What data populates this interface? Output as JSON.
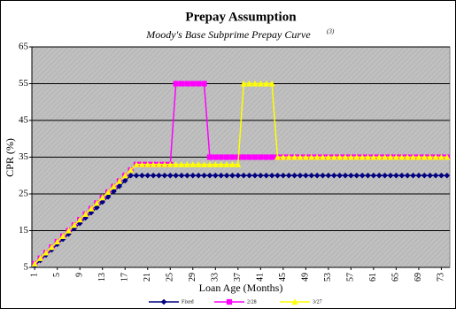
{
  "chart_data": {
    "type": "line",
    "title": "Prepay Assumption",
    "subtitle": "Moody's Base Subprime Prepay Curve",
    "subtitle_note": "(3)",
    "x_label": "Loan Age (Months)",
    "y_label": "CPR (%)",
    "x": [
      1,
      2,
      3,
      4,
      5,
      6,
      7,
      8,
      9,
      10,
      11,
      12,
      13,
      14,
      15,
      16,
      17,
      18,
      19,
      20,
      21,
      22,
      23,
      24,
      25,
      26,
      27,
      28,
      29,
      30,
      31,
      32,
      33,
      34,
      35,
      36,
      37,
      38,
      39,
      40,
      41,
      42,
      43,
      44,
      45,
      46,
      47,
      48,
      49,
      50,
      51,
      52,
      53,
      54,
      55,
      56,
      57,
      58,
      59,
      60,
      61,
      62,
      63,
      64,
      65,
      66,
      67,
      68,
      69,
      70,
      71,
      72,
      73,
      74
    ],
    "xlim": [
      0.5,
      74.5
    ],
    "xticks": [
      1,
      5,
      9,
      13,
      17,
      21,
      25,
      29,
      33,
      37,
      41,
      45,
      49,
      53,
      57,
      61,
      65,
      69,
      73
    ],
    "ylim": [
      5,
      65
    ],
    "yticks": [
      5,
      15,
      25,
      35,
      45,
      55,
      65
    ],
    "grid": true,
    "series": [
      {
        "name": "Fixed",
        "color": "#000080",
        "marker": "diamond",
        "values": [
          5.5,
          6.9,
          8.4,
          9.8,
          11.3,
          12.7,
          14.1,
          15.6,
          17.0,
          18.5,
          19.9,
          21.3,
          22.8,
          24.2,
          25.7,
          27.1,
          28.6,
          30,
          30,
          30,
          30,
          30,
          30,
          30,
          30,
          30,
          30,
          30,
          30,
          30,
          30,
          30,
          30,
          30,
          30,
          30,
          30,
          30,
          30,
          30,
          30,
          30,
          30,
          30,
          30,
          30,
          30,
          30,
          30,
          30,
          30,
          30,
          30,
          30,
          30,
          30,
          30,
          30,
          30,
          30,
          30,
          30,
          30,
          30,
          30,
          30,
          30,
          30,
          30,
          30,
          30,
          30,
          30,
          30
        ]
      },
      {
        "name": "2/28",
        "color": "#ff00ff",
        "marker": "square",
        "values": [
          6,
          7.5,
          9,
          10.5,
          12,
          13.5,
          15,
          16.5,
          18,
          19.5,
          21,
          22.5,
          24,
          25.5,
          27,
          28.5,
          30,
          31.5,
          33,
          33,
          33,
          33,
          33,
          33,
          33,
          55,
          55,
          55,
          55,
          55,
          55,
          35,
          35,
          35,
          35,
          35,
          35,
          35,
          35,
          35,
          35,
          35,
          35,
          35,
          35,
          35,
          35,
          35,
          35,
          35,
          35,
          35,
          35,
          35,
          35,
          35,
          35,
          35,
          35,
          35,
          35,
          35,
          35,
          35,
          35,
          35,
          35,
          35,
          35,
          35,
          35,
          35,
          35,
          35
        ]
      },
      {
        "name": "3/27",
        "color": "#ffff00",
        "marker": "triangle",
        "values": [
          6,
          7.5,
          9,
          10.5,
          12,
          13.5,
          15,
          16.5,
          18,
          19.5,
          21,
          22.5,
          24,
          25.5,
          27,
          28.5,
          30,
          31.5,
          33,
          33,
          33,
          33,
          33,
          33,
          33,
          33,
          33,
          33,
          33,
          33,
          33,
          33,
          33,
          33,
          33,
          33,
          33,
          55,
          55,
          55,
          55,
          55,
          55,
          35,
          35,
          35,
          35,
          35,
          35,
          35,
          35,
          35,
          35,
          35,
          35,
          35,
          35,
          35,
          35,
          35,
          35,
          35,
          35,
          35,
          35,
          35,
          35,
          35,
          35,
          35,
          35,
          35,
          35,
          35
        ]
      }
    ]
  }
}
